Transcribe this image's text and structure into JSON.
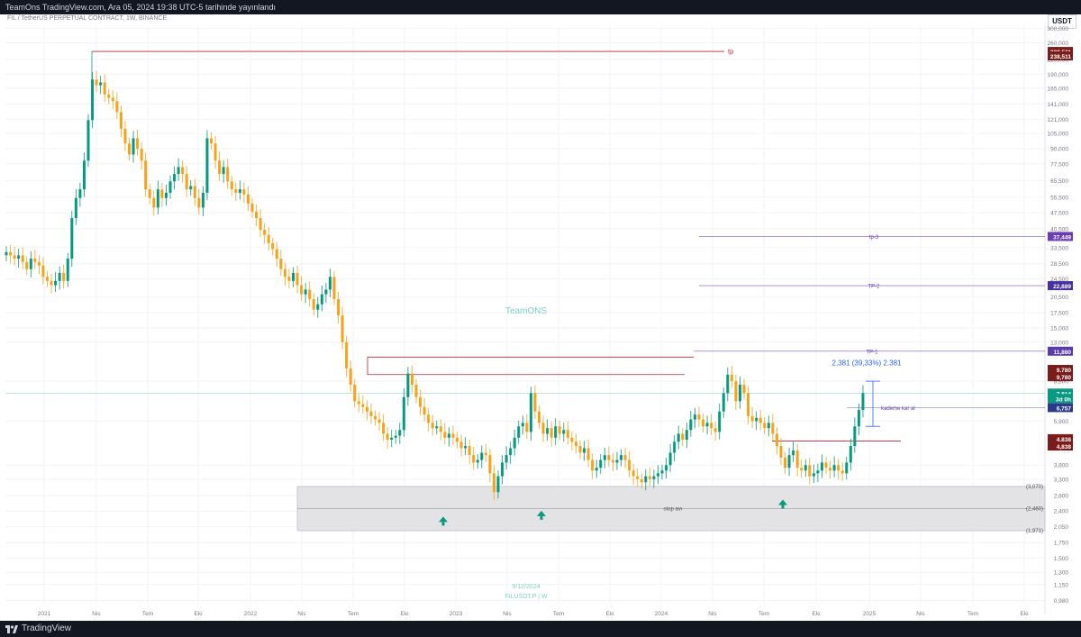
{
  "header": {
    "publish_line": "TeamOns TradingView.com, Ara 05, 2024 19:38 UTC-5 tarihinde yayınlandı",
    "pair_line": "FIL / TetherUS PERPETUAL CONTRACT, 1W, BINANCE",
    "currency": "USDT"
  },
  "watermark": {
    "brand": "TeamONS",
    "date": "9/12/2024",
    "symbol": "FILUSDT.P | W"
  },
  "footer": {
    "logo_text": "TradingView"
  },
  "chart_data": {
    "type": "candlestick",
    "scale": "log",
    "ylim": [
      0.95,
      310
    ],
    "y_ticks": [
      "300,000",
      "260,000",
      "220,000",
      "190,000",
      "165,000",
      "141,000",
      "121,000",
      "105,000",
      "90,000",
      "77,500",
      "65,500",
      "55,500",
      "47,500",
      "40,500",
      "33,500",
      "28,500",
      "24,500",
      "20,500",
      "17,500",
      "15,000",
      "13,000",
      "8,800",
      "5,900",
      "3,800",
      "3,300",
      "2,800",
      "2,400",
      "2,050",
      "1,750",
      "1,500",
      "1,300",
      "1,150",
      "0,980"
    ],
    "x_labels": [
      {
        "label": "2021",
        "x": 49
      },
      {
        "label": "Nis",
        "x": 107
      },
      {
        "label": "Tem",
        "x": 164
      },
      {
        "label": "Eki",
        "x": 220
      },
      {
        "label": "2022",
        "x": 278
      },
      {
        "label": "Nis",
        "x": 335
      },
      {
        "label": "Tem",
        "x": 392
      },
      {
        "label": "Eki",
        "x": 449
      },
      {
        "label": "2023",
        "x": 506
      },
      {
        "label": "Nis",
        "x": 563
      },
      {
        "label": "Tem",
        "x": 620
      },
      {
        "label": "Eki",
        "x": 677
      },
      {
        "label": "2024",
        "x": 734
      },
      {
        "label": "Nis",
        "x": 791
      },
      {
        "label": "Tem",
        "x": 848
      },
      {
        "label": "Eki",
        "x": 906
      },
      {
        "label": "2025",
        "x": 965
      },
      {
        "label": "Nis",
        "x": 1022
      },
      {
        "label": "Tem",
        "x": 1080
      },
      {
        "label": "Eki",
        "x": 1137
      }
    ],
    "closes": [
      32,
      31,
      30,
      31,
      29,
      27,
      30,
      29,
      28,
      25,
      24,
      23,
      24,
      26,
      24,
      30,
      45,
      55,
      60,
      80,
      120,
      180,
      170,
      175,
      155,
      150,
      145,
      130,
      110,
      95,
      85,
      100,
      90,
      80,
      60,
      55,
      50,
      60,
      55,
      58,
      65,
      70,
      75,
      70,
      60,
      62,
      55,
      50,
      58,
      100,
      95,
      80,
      70,
      75,
      65,
      60,
      58,
      60,
      57,
      52,
      48,
      45,
      40,
      38,
      35,
      33,
      30,
      27,
      25,
      24,
      26,
      23,
      21,
      22,
      20,
      18,
      19,
      21,
      22,
      25,
      20,
      17,
      13,
      10,
      8.5,
      7.2,
      7.0,
      6.8,
      6.5,
      6.2,
      6.0,
      5.8,
      5.2,
      4.9,
      5.0,
      5.1,
      5.4,
      7.5,
      9.5,
      8.5,
      7.5,
      6.8,
      6.3,
      5.8,
      5.5,
      5.6,
      5.3,
      5.0,
      5.2,
      5.0,
      4.8,
      4.5,
      4.6,
      4.2,
      3.9,
      4.0,
      4.3,
      4.2,
      3.5,
      2.9,
      3.4,
      3.9,
      4.2,
      4.5,
      5.0,
      5.6,
      5.8,
      5.3,
      7.8,
      6.5,
      5.8,
      5.2,
      5.5,
      5.0,
      5.6,
      5.2,
      5.4,
      5.0,
      4.8,
      4.6,
      4.3,
      4.5,
      4.0,
      3.6,
      3.7,
      4.0,
      4.2,
      4.0,
      3.9,
      4.0,
      4.2,
      4.0,
      3.6,
      3.4,
      3.3,
      3.2,
      3.4,
      3.3,
      3.4,
      3.5,
      3.6,
      3.8,
      4.3,
      4.8,
      5.2,
      4.9,
      5.4,
      6.0,
      6.3,
      6.0,
      5.6,
      5.8,
      5.5,
      5.3,
      6.5,
      7.8,
      9.4,
      8.8,
      7.2,
      8.5,
      7.8,
      6.2,
      5.9,
      6.1,
      5.8,
      5.5,
      5.8,
      5.2,
      4.6,
      4.1,
      3.7,
      4.2,
      4.4,
      3.7,
      3.6,
      3.8,
      3.4,
      3.5,
      3.6,
      3.9,
      3.7,
      3.6,
      3.8,
      3.6,
      3.5,
      3.9,
      4.6,
      5.6,
      6.6,
      7.81
    ],
    "price_labels": [
      {
        "text": "238,511",
        "v": 238.511,
        "color": "#7b1c1c"
      },
      {
        "text": "238,511",
        "v": 228,
        "color": "#7b1c1c"
      },
      {
        "text": "37,449",
        "v": 37.449,
        "color": "#6a3db5"
      },
      {
        "text": "22,889",
        "v": 22.889,
        "color": "#4a2fa0"
      },
      {
        "text": "11,880",
        "v": 11.88,
        "color": "#5b3bb0"
      },
      {
        "text": "9,780",
        "v": 9.9,
        "color": "#7b1c1c"
      },
      {
        "text": "9,780",
        "v": 9.2,
        "color": "#7b1c1c"
      },
      {
        "text": "7,814",
        "v": 7.814,
        "color": "#089981"
      },
      {
        "text": "3d 0h",
        "v": 7.4,
        "color": "#089981"
      },
      {
        "text": "6,757",
        "v": 6.757,
        "color": "#2b3a8c"
      },
      {
        "text": "4,838",
        "v": 4.95,
        "color": "#7b1c1c"
      },
      {
        "text": "4,838",
        "v": 4.6,
        "color": "#7b1c1c"
      }
    ],
    "annotations": [
      {
        "text": "tp",
        "v": 238.511
      },
      {
        "text": "tp-3",
        "v": 37.449
      },
      {
        "text": "TP-2",
        "v": 22.889
      },
      {
        "text": "TP-1",
        "v": 11.88
      },
      {
        "text": "kademe kar al",
        "v": 6.757
      },
      {
        "text": "stop avı",
        "v": 2.46
      },
      {
        "text": "(3,070)",
        "v": 3.07
      },
      {
        "text": "(2,460)",
        "v": 2.46
      },
      {
        "text": "(1,971)",
        "v": 1.971
      },
      {
        "text": "2,381 (39,33%) 2.381",
        "v": 10.5
      }
    ],
    "zone": {
      "top": 3.07,
      "bottom": 1.971,
      "mid": 2.46
    },
    "levels": {
      "tp": 238.511,
      "tp3": 37.449,
      "tp2": 22.889,
      "tp1": 11.88,
      "resistance_a": 11.2,
      "resistance_b": 9.4,
      "kademe": 6.757,
      "support_red": 4.838,
      "current": 7.814
    },
    "colors": {
      "up": "#089981",
      "down": "#f7a21b",
      "bg": "#ffffff",
      "grid": "#f0f3fa",
      "red_line": "#b22833",
      "purple_line": "#7e57c2",
      "blue_measure": "#2962ff"
    }
  }
}
